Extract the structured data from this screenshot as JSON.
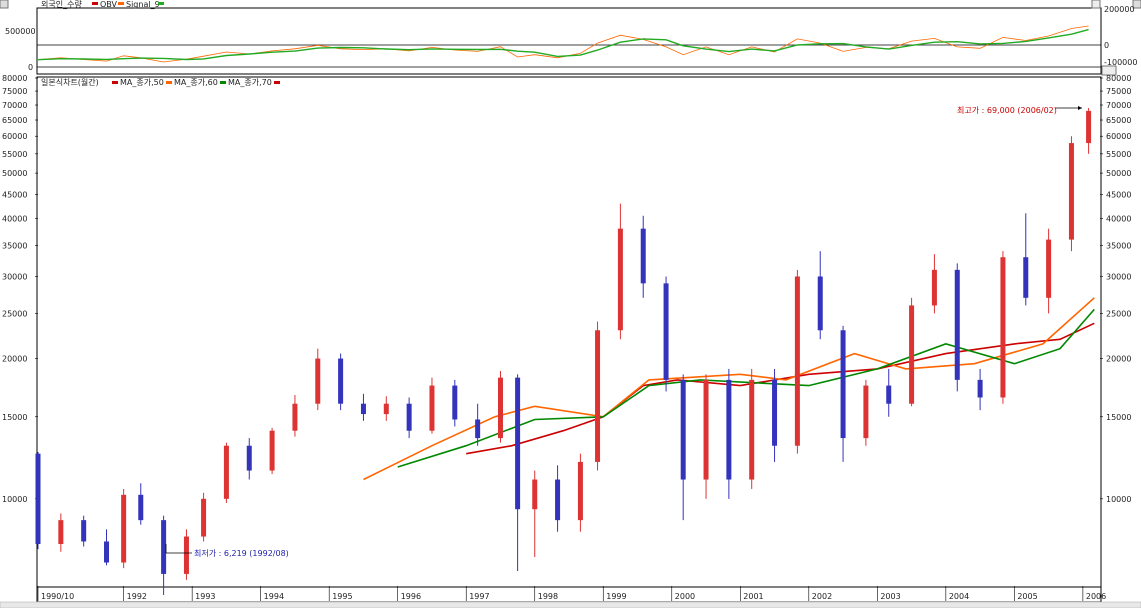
{
  "upper_panel": {
    "title": "외국인_수량",
    "legend": [
      {
        "name": "OBV",
        "color": "#cc0000"
      },
      {
        "name": "Signal_9",
        "color": "#22aa22"
      }
    ],
    "left_ticks": [
      "500000",
      "0"
    ],
    "right_ticks": [
      "200000",
      "0",
      "-100000"
    ]
  },
  "main_panel": {
    "title": "일본식차트(월간)",
    "legend": [
      {
        "name": "MA_종가,50",
        "color": "#cc0000"
      },
      {
        "name": "MA_종가,60",
        "color": "#ff6600"
      },
      {
        "name": "MA_종가,70",
        "color": "#008800"
      }
    ],
    "max_annotation": "최고가 : 69,000 (2006/02)",
    "min_annotation": "최저가 : 6,219 (1992/08)"
  },
  "chart_data": {
    "type": "candlestick",
    "y_scale": "log",
    "ylim": [
      6500,
      80000
    ],
    "y_ticks": [
      80000,
      75000,
      70000,
      65000,
      60000,
      55000,
      50000,
      45000,
      40000,
      35000,
      30000,
      25000,
      20000,
      15000,
      10000
    ],
    "x_labels": [
      "1990/10",
      "1992",
      "1993",
      "1994",
      "1995",
      "1996",
      "1997",
      "1998",
      "1999",
      "2000",
      "2001",
      "2002",
      "2003",
      "2004",
      "2005",
      "2006"
    ],
    "up_color": "#dd3333",
    "down_color": "#3333bb",
    "candles": [
      {
        "t": "1990/10",
        "o": 12500,
        "h": 12600,
        "l": 7800,
        "c": 8000
      },
      {
        "t": "1991/02",
        "o": 8000,
        "h": 9300,
        "l": 7700,
        "c": 9000
      },
      {
        "t": "1991/06",
        "o": 9000,
        "h": 9200,
        "l": 7900,
        "c": 8100
      },
      {
        "t": "1991/10",
        "o": 8100,
        "h": 8600,
        "l": 7200,
        "c": 7300
      },
      {
        "t": "1992/01",
        "o": 7300,
        "h": 10500,
        "l": 7100,
        "c": 10200
      },
      {
        "t": "1992/04",
        "o": 10200,
        "h": 10800,
        "l": 8800,
        "c": 9000
      },
      {
        "t": "1992/08",
        "o": 9000,
        "h": 9200,
        "l": 6219,
        "c": 6900
      },
      {
        "t": "1992/12",
        "o": 6900,
        "h": 8600,
        "l": 6700,
        "c": 8300
      },
      {
        "t": "1993/03",
        "o": 8300,
        "h": 10300,
        "l": 8100,
        "c": 10000
      },
      {
        "t": "1993/07",
        "o": 10000,
        "h": 13200,
        "l": 9800,
        "c": 13000
      },
      {
        "t": "1993/11",
        "o": 13000,
        "h": 13500,
        "l": 11000,
        "c": 11500
      },
      {
        "t": "1994/03",
        "o": 11500,
        "h": 14200,
        "l": 11300,
        "c": 14000
      },
      {
        "t": "1994/07",
        "o": 14000,
        "h": 16700,
        "l": 13600,
        "c": 16000
      },
      {
        "t": "1994/11",
        "o": 16000,
        "h": 21000,
        "l": 15500,
        "c": 20000
      },
      {
        "t": "1995/03",
        "o": 20000,
        "h": 20500,
        "l": 15500,
        "c": 16000
      },
      {
        "t": "1995/07",
        "o": 16000,
        "h": 16800,
        "l": 14700,
        "c": 15200
      },
      {
        "t": "1995/11",
        "o": 15200,
        "h": 16600,
        "l": 14700,
        "c": 16000
      },
      {
        "t": "1996/03",
        "o": 16000,
        "h": 16500,
        "l": 13500,
        "c": 14000
      },
      {
        "t": "1996/07",
        "o": 14000,
        "h": 18200,
        "l": 13800,
        "c": 17500
      },
      {
        "t": "1996/11",
        "o": 17500,
        "h": 18000,
        "l": 14300,
        "c": 14800
      },
      {
        "t": "1997/03",
        "o": 14800,
        "h": 16000,
        "l": 13000,
        "c": 13500
      },
      {
        "t": "1997/07",
        "o": 13500,
        "h": 18800,
        "l": 13200,
        "c": 18200
      },
      {
        "t": "1997/10",
        "o": 18200,
        "h": 18500,
        "l": 7000,
        "c": 9500
      },
      {
        "t": "1998/01",
        "o": 9500,
        "h": 11500,
        "l": 7500,
        "c": 11000
      },
      {
        "t": "1998/05",
        "o": 11000,
        "h": 11800,
        "l": 8500,
        "c": 9000
      },
      {
        "t": "1998/09",
        "o": 9000,
        "h": 12500,
        "l": 8500,
        "c": 12000
      },
      {
        "t": "1998/12",
        "o": 12000,
        "h": 24000,
        "l": 11500,
        "c": 23000
      },
      {
        "t": "1999/04",
        "o": 23000,
        "h": 43000,
        "l": 22000,
        "c": 38000
      },
      {
        "t": "1999/08",
        "o": 38000,
        "h": 40500,
        "l": 27000,
        "c": 29000
      },
      {
        "t": "1999/12",
        "o": 29000,
        "h": 30000,
        "l": 17000,
        "c": 18000
      },
      {
        "t": "2000/03",
        "o": 18000,
        "h": 18500,
        "l": 9000,
        "c": 11000
      },
      {
        "t": "2000/07",
        "o": 11000,
        "h": 18500,
        "l": 10000,
        "c": 18000
      },
      {
        "t": "2000/11",
        "o": 18000,
        "h": 19000,
        "l": 10000,
        "c": 11000
      },
      {
        "t": "2001/03",
        "o": 11000,
        "h": 19000,
        "l": 10500,
        "c": 18000
      },
      {
        "t": "2001/07",
        "o": 18000,
        "h": 19000,
        "l": 12000,
        "c": 13000
      },
      {
        "t": "2001/11",
        "o": 13000,
        "h": 31000,
        "l": 12500,
        "c": 30000
      },
      {
        "t": "2002/03",
        "o": 30000,
        "h": 34000,
        "l": 22000,
        "c": 23000
      },
      {
        "t": "2002/07",
        "o": 23000,
        "h": 23500,
        "l": 12000,
        "c": 13500
      },
      {
        "t": "2002/11",
        "o": 13500,
        "h": 18000,
        "l": 13000,
        "c": 17500
      },
      {
        "t": "2003/03",
        "o": 17500,
        "h": 19000,
        "l": 15000,
        "c": 16000
      },
      {
        "t": "2003/07",
        "o": 16000,
        "h": 27000,
        "l": 15800,
        "c": 26000
      },
      {
        "t": "2003/11",
        "o": 26000,
        "h": 33500,
        "l": 25000,
        "c": 31000
      },
      {
        "t": "2004/03",
        "o": 31000,
        "h": 32000,
        "l": 17000,
        "c": 18000
      },
      {
        "t": "2004/07",
        "o": 18000,
        "h": 19000,
        "l": 15500,
        "c": 16500
      },
      {
        "t": "2004/11",
        "o": 16500,
        "h": 34000,
        "l": 16000,
        "c": 33000
      },
      {
        "t": "2005/03",
        "o": 33000,
        "h": 41000,
        "l": 26000,
        "c": 27000
      },
      {
        "t": "2005/07",
        "o": 27000,
        "h": 38000,
        "l": 25000,
        "c": 36000
      },
      {
        "t": "2005/11",
        "o": 36000,
        "h": 60000,
        "l": 34000,
        "c": 58000
      },
      {
        "t": "2006/02",
        "o": 58000,
        "h": 69000,
        "l": 55000,
        "c": 68000
      }
    ],
    "series": [
      {
        "name": "MA_종가,50",
        "color": "#cc0000",
        "points": [
          [
            "1997/01",
            12500
          ],
          [
            "1997/09",
            13000
          ],
          [
            "1998/06",
            14000
          ],
          [
            "1999/01",
            15000
          ],
          [
            "1999/08",
            17500
          ],
          [
            "2000/02",
            18000
          ],
          [
            "2001/01",
            17500
          ],
          [
            "2002/01",
            18500
          ],
          [
            "2003/01",
            19000
          ],
          [
            "2004/01",
            20500
          ],
          [
            "2005/01",
            21500
          ],
          [
            "2005/09",
            22000
          ],
          [
            "2006/03",
            23800
          ]
        ]
      },
      {
        "name": "MA_종가,60",
        "color": "#ff6600",
        "points": [
          [
            "1995/07",
            11000
          ],
          [
            "1996/07",
            13000
          ],
          [
            "1997/06",
            15000
          ],
          [
            "1998/01",
            15800
          ],
          [
            "1999/01",
            15000
          ],
          [
            "1999/09",
            18000
          ],
          [
            "2001/01",
            18500
          ],
          [
            "2001/09",
            18000
          ],
          [
            "2002/09",
            20500
          ],
          [
            "2003/06",
            19000
          ],
          [
            "2004/06",
            19500
          ],
          [
            "2005/06",
            21500
          ],
          [
            "2006/03",
            27000
          ]
        ]
      },
      {
        "name": "MA_종가,70",
        "color": "#008800",
        "points": [
          [
            "1996/01",
            11700
          ],
          [
            "1997/01",
            13000
          ],
          [
            "1998/01",
            14800
          ],
          [
            "1999/01",
            15000
          ],
          [
            "1999/09",
            17500
          ],
          [
            "2000/06",
            18000
          ],
          [
            "2002/01",
            17500
          ],
          [
            "2003/01",
            19000
          ],
          [
            "2004/01",
            21500
          ],
          [
            "2005/01",
            19500
          ],
          [
            "2005/09",
            21000
          ],
          [
            "2006/03",
            25500
          ]
        ]
      }
    ]
  }
}
